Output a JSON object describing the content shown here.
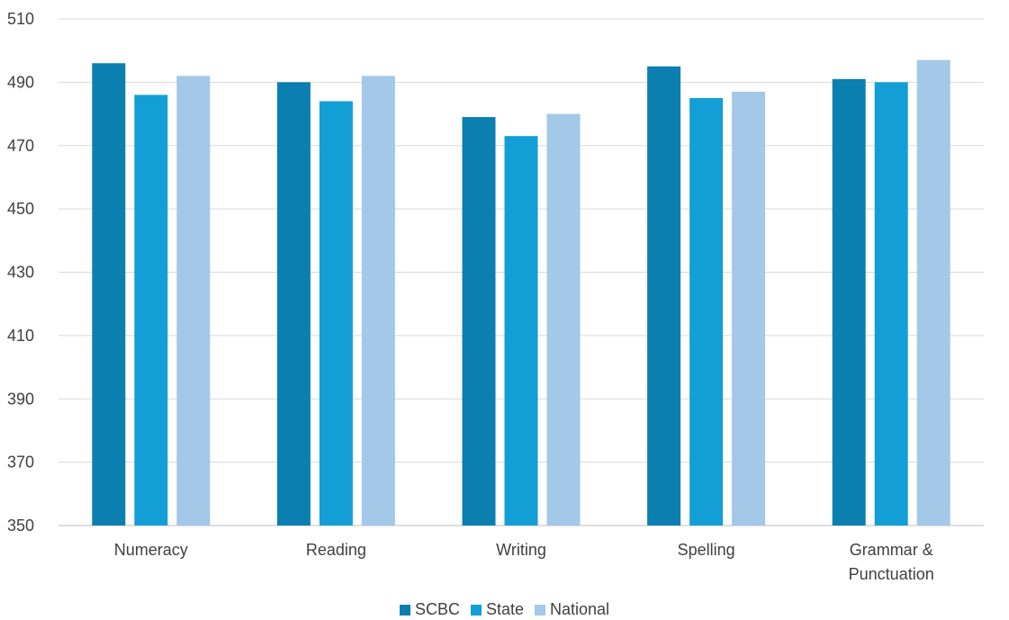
{
  "chart_data": {
    "type": "bar",
    "categories": [
      "Numeracy",
      "Reading",
      "Writing",
      "Spelling",
      "Grammar & Punctuation"
    ],
    "category_lines": [
      [
        "Numeracy"
      ],
      [
        "Reading"
      ],
      [
        "Writing"
      ],
      [
        "Spelling"
      ],
      [
        "Grammar &",
        "Punctuation"
      ]
    ],
    "series": [
      {
        "name": "SCBC",
        "color": "#0b7fb0",
        "values": [
          496,
          490,
          479,
          495,
          491
        ]
      },
      {
        "name": "State",
        "color": "#139ed6",
        "values": [
          486,
          484,
          473,
          485,
          490
        ]
      },
      {
        "name": "National",
        "color": "#a3c8e8",
        "values": [
          492,
          492,
          480,
          487,
          497
        ]
      }
    ],
    "ylim": [
      350,
      510
    ],
    "yticks": [
      350,
      370,
      390,
      410,
      430,
      450,
      470,
      490,
      510
    ],
    "grid": true,
    "legend": "bottom",
    "title": "",
    "xlabel": "",
    "ylabel": ""
  }
}
